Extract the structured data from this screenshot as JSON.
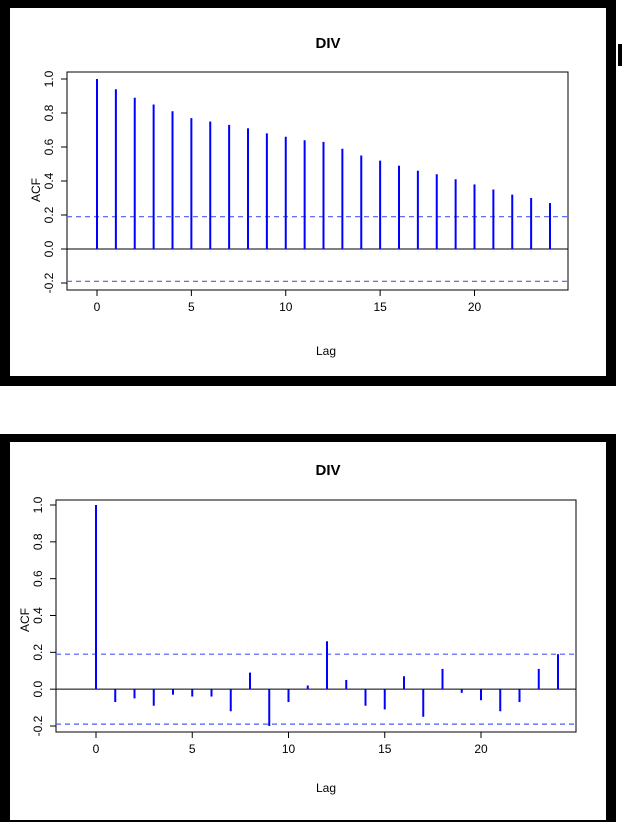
{
  "chart_data": [
    {
      "type": "bar",
      "title": "DIV",
      "xlabel": "Lag",
      "ylabel": "ACF",
      "xlim": [
        0,
        24
      ],
      "ylim": [
        -0.2,
        1.0
      ],
      "x_ticks": [
        "0",
        "5",
        "10",
        "15",
        "20"
      ],
      "y_ticks": [
        "-0.2",
        "0.0",
        "0.2",
        "0.4",
        "0.6",
        "0.8",
        "1.0"
      ],
      "confidence_bound": 0.19,
      "x": [
        0,
        1,
        2,
        3,
        4,
        5,
        6,
        7,
        8,
        9,
        10,
        11,
        12,
        13,
        14,
        15,
        16,
        17,
        18,
        19,
        20,
        21,
        22,
        23,
        24
      ],
      "values": [
        1.0,
        0.94,
        0.89,
        0.85,
        0.81,
        0.77,
        0.75,
        0.73,
        0.71,
        0.68,
        0.66,
        0.64,
        0.63,
        0.59,
        0.55,
        0.52,
        0.49,
        0.46,
        0.44,
        0.41,
        0.38,
        0.35,
        0.32,
        0.3,
        0.27
      ],
      "bar_color": "#0000ff",
      "bound_color": "#4b5cf0"
    },
    {
      "type": "bar",
      "title": "DIV",
      "xlabel": "Lag",
      "ylabel": "ACF",
      "xlim": [
        0,
        24
      ],
      "ylim": [
        -0.2,
        1.0
      ],
      "x_ticks": [
        "0",
        "5",
        "10",
        "15",
        "20"
      ],
      "y_ticks": [
        "-0.2",
        "0.0",
        "0.2",
        "0.4",
        "0.6",
        "0.8",
        "1.0"
      ],
      "confidence_bound": 0.19,
      "x": [
        0,
        1,
        2,
        3,
        4,
        5,
        6,
        7,
        8,
        9,
        10,
        11,
        12,
        13,
        14,
        15,
        16,
        17,
        18,
        19,
        20,
        21,
        22,
        23,
        24
      ],
      "values": [
        1.0,
        -0.07,
        -0.05,
        -0.09,
        -0.03,
        -0.04,
        -0.04,
        -0.12,
        0.09,
        -0.2,
        -0.07,
        0.02,
        0.26,
        0.05,
        -0.09,
        -0.11,
        0.07,
        -0.15,
        0.11,
        -0.02,
        -0.06,
        -0.12,
        -0.07,
        0.11,
        0.19
      ],
      "bar_color": "#0000ff",
      "bound_color": "#4b5cf0"
    }
  ]
}
